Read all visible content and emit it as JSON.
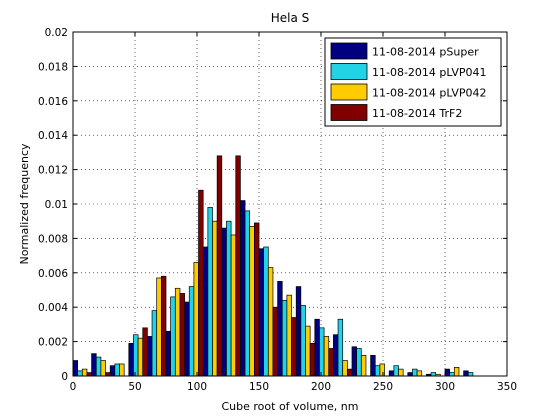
{
  "chart_data": {
    "type": "bar",
    "title": "Hela S",
    "xlabel": "Cube root of volume, nm",
    "ylabel": "Normalized frequency",
    "xlim": [
      0,
      350
    ],
    "ylim": [
      0,
      0.02
    ],
    "xticks": [
      0,
      50,
      100,
      150,
      200,
      250,
      300,
      350
    ],
    "xtick_labels": [
      "0",
      "50",
      "100",
      "150",
      "200",
      "250",
      "300",
      "350"
    ],
    "yticks": [
      0,
      0.002,
      0.004,
      0.006,
      0.008,
      0.01,
      0.012,
      0.014,
      0.016,
      0.018,
      0.02
    ],
    "ytick_labels": [
      "0",
      "0.002",
      "0.004",
      "0.006",
      "0.008",
      "0.01",
      "0.012",
      "0.014",
      "0.016",
      "0.018",
      "0.02"
    ],
    "grid": true,
    "legend_position": "top-right",
    "x": [
      0,
      15,
      30,
      45,
      60,
      75,
      90,
      105,
      120,
      135,
      150,
      165,
      180,
      195,
      210,
      225,
      240,
      255,
      270,
      285,
      300,
      315
    ],
    "bar_width": 3.75,
    "series": [
      {
        "name": "11-08-2014 pSuper",
        "color": "#000080",
        "values": [
          0.0009,
          0.0013,
          0.0006,
          0.0019,
          0.0023,
          0.0026,
          0.0043,
          0.0075,
          0.0086,
          0.0102,
          0.0074,
          0.0055,
          0.0052,
          0.0033,
          0.0024,
          0.0017,
          0.0012,
          0.0003,
          0.0002,
          0.0001,
          0.0004,
          0.0003
        ]
      },
      {
        "name": "11-08-2014 pLVP041",
        "color": "#22d3e8",
        "values": [
          0.0003,
          0.0011,
          0.0007,
          0.0024,
          0.0038,
          0.0046,
          0.0052,
          0.0098,
          0.009,
          0.0096,
          0.0075,
          0.0044,
          0.0041,
          0.0028,
          0.0033,
          0.0016,
          0.0006,
          0.0006,
          0.0004,
          0.0002,
          0.0002,
          0.0002
        ]
      },
      {
        "name": "11-08-2014 pLVP042",
        "color": "#ffcc00",
        "values": [
          0.0004,
          0.0009,
          0.0007,
          0.0022,
          0.0057,
          0.0051,
          0.0066,
          0.009,
          0.0082,
          0.0087,
          0.0063,
          0.0047,
          0.0029,
          0.0023,
          0.0009,
          0.0012,
          0.0007,
          0.0004,
          0.0003,
          0.0001,
          0.0005,
          0.0
        ]
      },
      {
        "name": "11-08-2014 TrF2",
        "color": "#800000",
        "values": [
          0.0002,
          0.0002,
          0.0,
          0.0028,
          0.0058,
          0.0048,
          0.0108,
          0.0128,
          0.0128,
          0.0089,
          0.004,
          0.0034,
          0.0019,
          0.0016,
          0.0004,
          0.0,
          0.0,
          0.0,
          0.0,
          0.0,
          0.0,
          0.0
        ]
      }
    ]
  }
}
